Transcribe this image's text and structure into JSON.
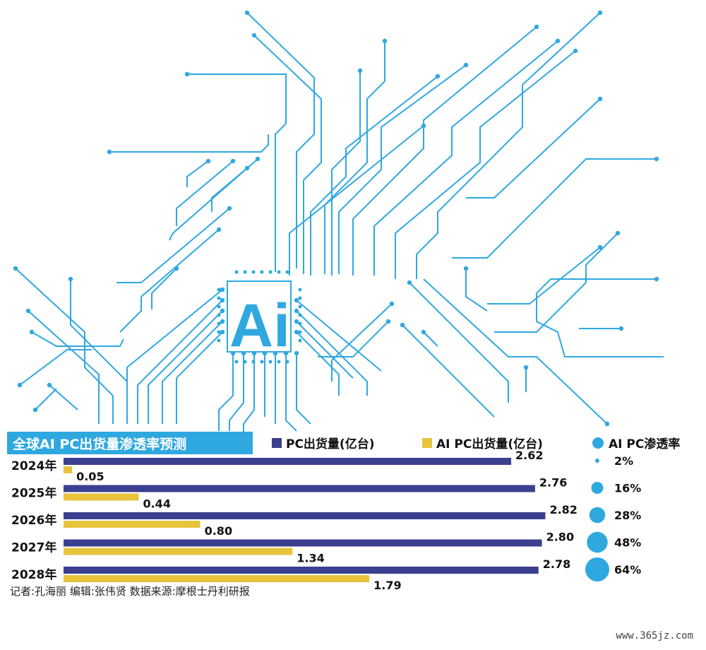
{
  "chart_data": {
    "type": "bar",
    "title": "全球AI PC出货量渗透率预测",
    "categories": [
      "2024年",
      "2025年",
      "2026年",
      "2027年",
      "2028年"
    ],
    "series": [
      {
        "name": "PC出货量(亿台)",
        "values": [
          2.62,
          2.76,
          2.82,
          2.8,
          2.78
        ],
        "labels": [
          "2.62",
          "2.76",
          "2.82",
          "2.80",
          "2.78"
        ],
        "color": "#3b3f8f"
      },
      {
        "name": "AI PC出货量(亿台)",
        "values": [
          0.05,
          0.44,
          0.8,
          1.34,
          1.79
        ],
        "labels": [
          "0.05",
          "0.44",
          "0.80",
          "1.34",
          "1.79"
        ],
        "color": "#e8c33c"
      }
    ],
    "penetration": {
      "name": "AI PC渗透率",
      "values": [
        2,
        16,
        28,
        48,
        64
      ],
      "labels": [
        "2%",
        "16%",
        "28%",
        "48%",
        "64%"
      ],
      "color": "#2fa8e0"
    },
    "orientation": "horizontal",
    "xlim": [
      0,
      2.9
    ],
    "grid": false,
    "legend": "top"
  },
  "illustration": {
    "logo_text": "Ai",
    "accent": "#2fa8e0"
  },
  "credit": "记者:孔海丽   编辑:张伟贤   数据来源:摩根士丹利研报",
  "watermark": "www.365jz.com"
}
